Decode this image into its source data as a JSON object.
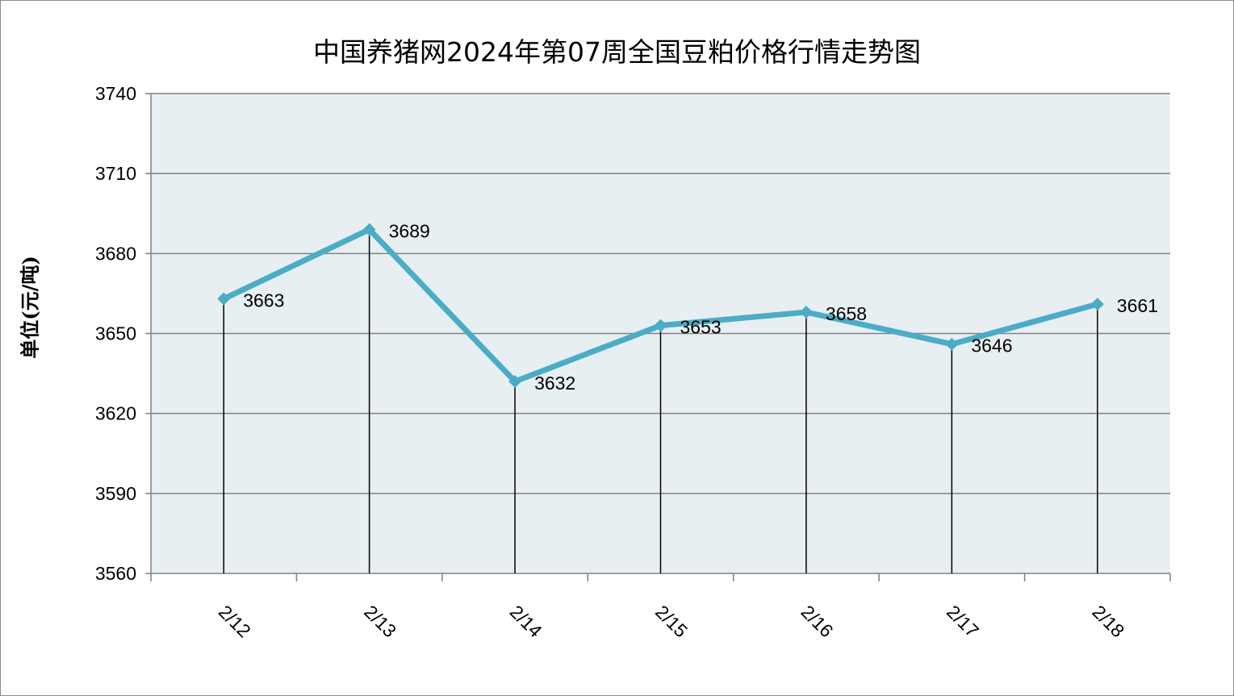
{
  "chart_data": {
    "type": "line",
    "title": "中国养猪网2024年第07周全国豆粕价格行情走势图",
    "ylabel": "单位(元/吨)",
    "xlabel": "",
    "categories": [
      "2/12",
      "2/13",
      "2/14",
      "2/15",
      "2/16",
      "2/17",
      "2/18"
    ],
    "series": [
      {
        "values": [
          3663,
          3689,
          3632,
          3653,
          3658,
          3646,
          3661
        ]
      }
    ],
    "data_labels": [
      "3663",
      "3689",
      "3632",
      "3653",
      "3658",
      "3646",
      "3661"
    ],
    "ylim": [
      3560,
      3740
    ],
    "yticks": [
      "3560",
      "3590",
      "3620",
      "3650",
      "3680",
      "3710",
      "3740"
    ],
    "grid": true,
    "legend": "none",
    "colors": {
      "line": "#4bacc6",
      "plot_background": "#e8eff3",
      "gridline": "#808080",
      "drop_line": "#000000"
    }
  }
}
